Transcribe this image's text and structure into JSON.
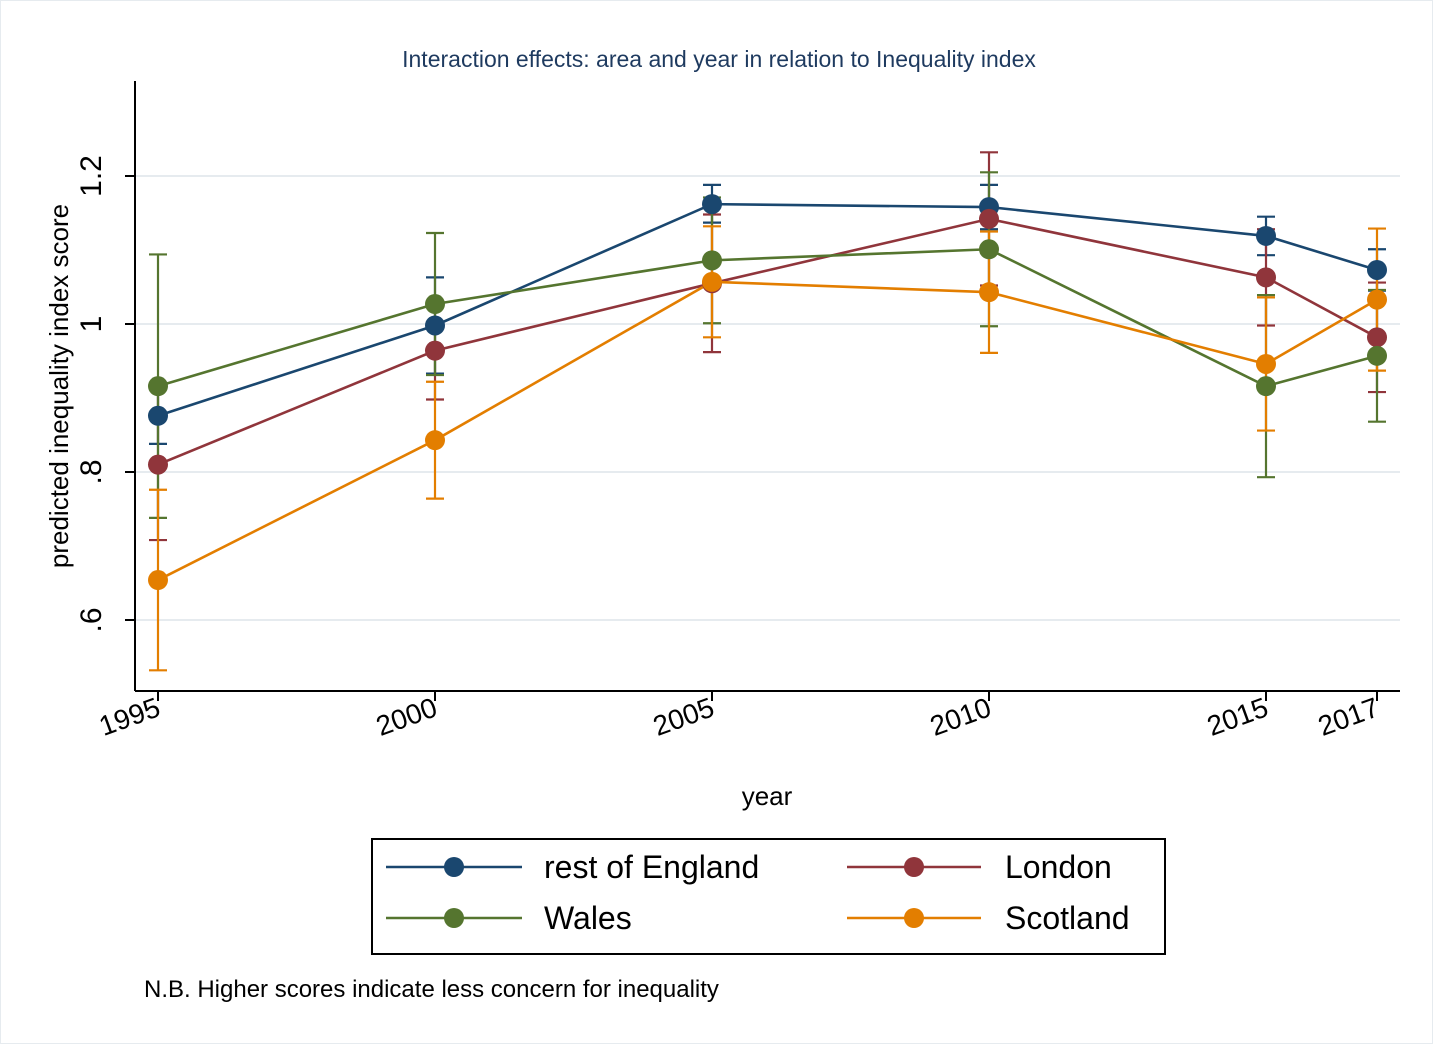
{
  "chart_data": {
    "type": "line",
    "title": "Interaction effects: area and year in relation to Inequality index",
    "xlabel": "year",
    "ylabel": "predicted inequality index score",
    "x": [
      1995,
      2000,
      2005,
      2010,
      2015,
      2017
    ],
    "x_tick_labels": [
      "1995",
      "2000",
      "2005",
      "2010",
      "2015",
      "2017"
    ],
    "y_ticks": [
      0.6,
      0.8,
      1.0,
      1.2
    ],
    "y_tick_labels": [
      ".6",
      ".8",
      "1",
      "1.2"
    ],
    "ylim": [
      0.505,
      1.33
    ],
    "grid": true,
    "legend_placement": "bottom",
    "note": "N.B. Higher scores indicate less concern for inequality",
    "series": [
      {
        "name": "rest of England",
        "color": "#1a476f",
        "values": [
          0.876,
          0.998,
          1.162,
          1.158,
          1.119,
          1.073
        ],
        "ci_low": [
          0.838,
          0.933,
          1.137,
          1.128,
          1.093,
          1.045
        ],
        "ci_high": [
          0.914,
          1.063,
          1.188,
          1.188,
          1.145,
          1.101
        ]
      },
      {
        "name": "London",
        "color": "#90353b",
        "values": [
          0.81,
          0.964,
          1.055,
          1.142,
          1.063,
          0.982
        ],
        "ci_low": [
          0.708,
          0.898,
          0.962,
          1.052,
          0.998,
          0.908
        ],
        "ci_high": [
          0.912,
          1.03,
          1.148,
          1.232,
          1.128,
          1.056
        ]
      },
      {
        "name": "Wales",
        "color": "#55752f",
        "values": [
          0.916,
          1.027,
          1.086,
          1.101,
          0.916,
          0.957
        ],
        "ci_low": [
          0.738,
          0.931,
          1.001,
          0.997,
          0.793,
          0.868
        ],
        "ci_high": [
          1.094,
          1.123,
          1.171,
          1.205,
          1.039,
          1.046
        ]
      },
      {
        "name": "Scotland",
        "color": "#e37e00",
        "values": [
          0.654,
          0.843,
          1.057,
          1.043,
          0.946,
          1.033
        ],
        "ci_low": [
          0.532,
          0.764,
          0.982,
          0.961,
          0.856,
          0.937
        ],
        "ci_high": [
          0.776,
          0.922,
          1.132,
          1.125,
          1.036,
          1.129
        ]
      }
    ]
  }
}
